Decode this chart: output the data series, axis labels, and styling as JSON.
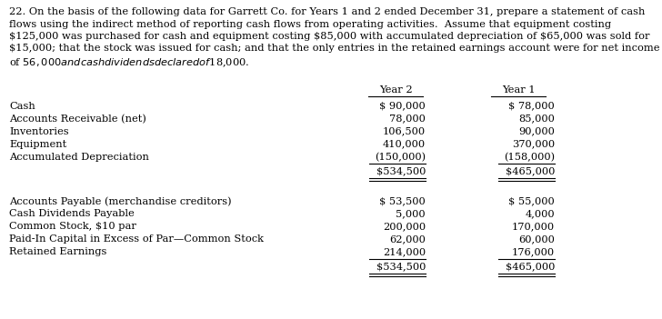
{
  "title_lines": [
    "22. On the basis of the following data for Garrett Co. for Years 1 and 2 ended December 31, prepare a statement of cash",
    "flows using the indirect method of reporting cash flows from operating activities.  Assume that equipment costing",
    "$125,000 was purchased for cash and equipment costing $85,000 with accumulated depreciation of $65,000 was sold for",
    "$15,000; that the stock was issued for cash; and that the only entries in the retained earnings account were for net income",
    "of $56,000 and cash dividends declared of $18,000."
  ],
  "col_headers": [
    "Year 2",
    "Year 1"
  ],
  "section1_labels": [
    "Cash",
    "Accounts Receivable (net)",
    "Inventories",
    "Equipment",
    "Accumulated Depreciation"
  ],
  "section1_year2": [
    "$ 90,000",
    "78,000",
    "106,500",
    "410,000",
    "(150,000)"
  ],
  "section1_year1": [
    "$ 78,000",
    "85,000",
    "90,000",
    "370,000",
    "(158,000)"
  ],
  "section1_total_year2": "$534,500",
  "section1_total_year1": "$465,000",
  "section2_labels": [
    "Accounts Payable (merchandise creditors)",
    "Cash Dividends Payable",
    "Common Stock, $10 par",
    "Paid-In Capital in Excess of Par—Common Stock",
    "Retained Earnings"
  ],
  "section2_year2": [
    "$ 53,500",
    "5,000",
    "200,000",
    "62,000",
    "214,000"
  ],
  "section2_year1": [
    "$ 55,000",
    "4,000",
    "170,000",
    "60,000",
    "176,000"
  ],
  "section2_total_year2": "$534,500",
  "section2_total_year1": "$465,000",
  "bg_color": "#ffffff",
  "font_size": 8.2
}
